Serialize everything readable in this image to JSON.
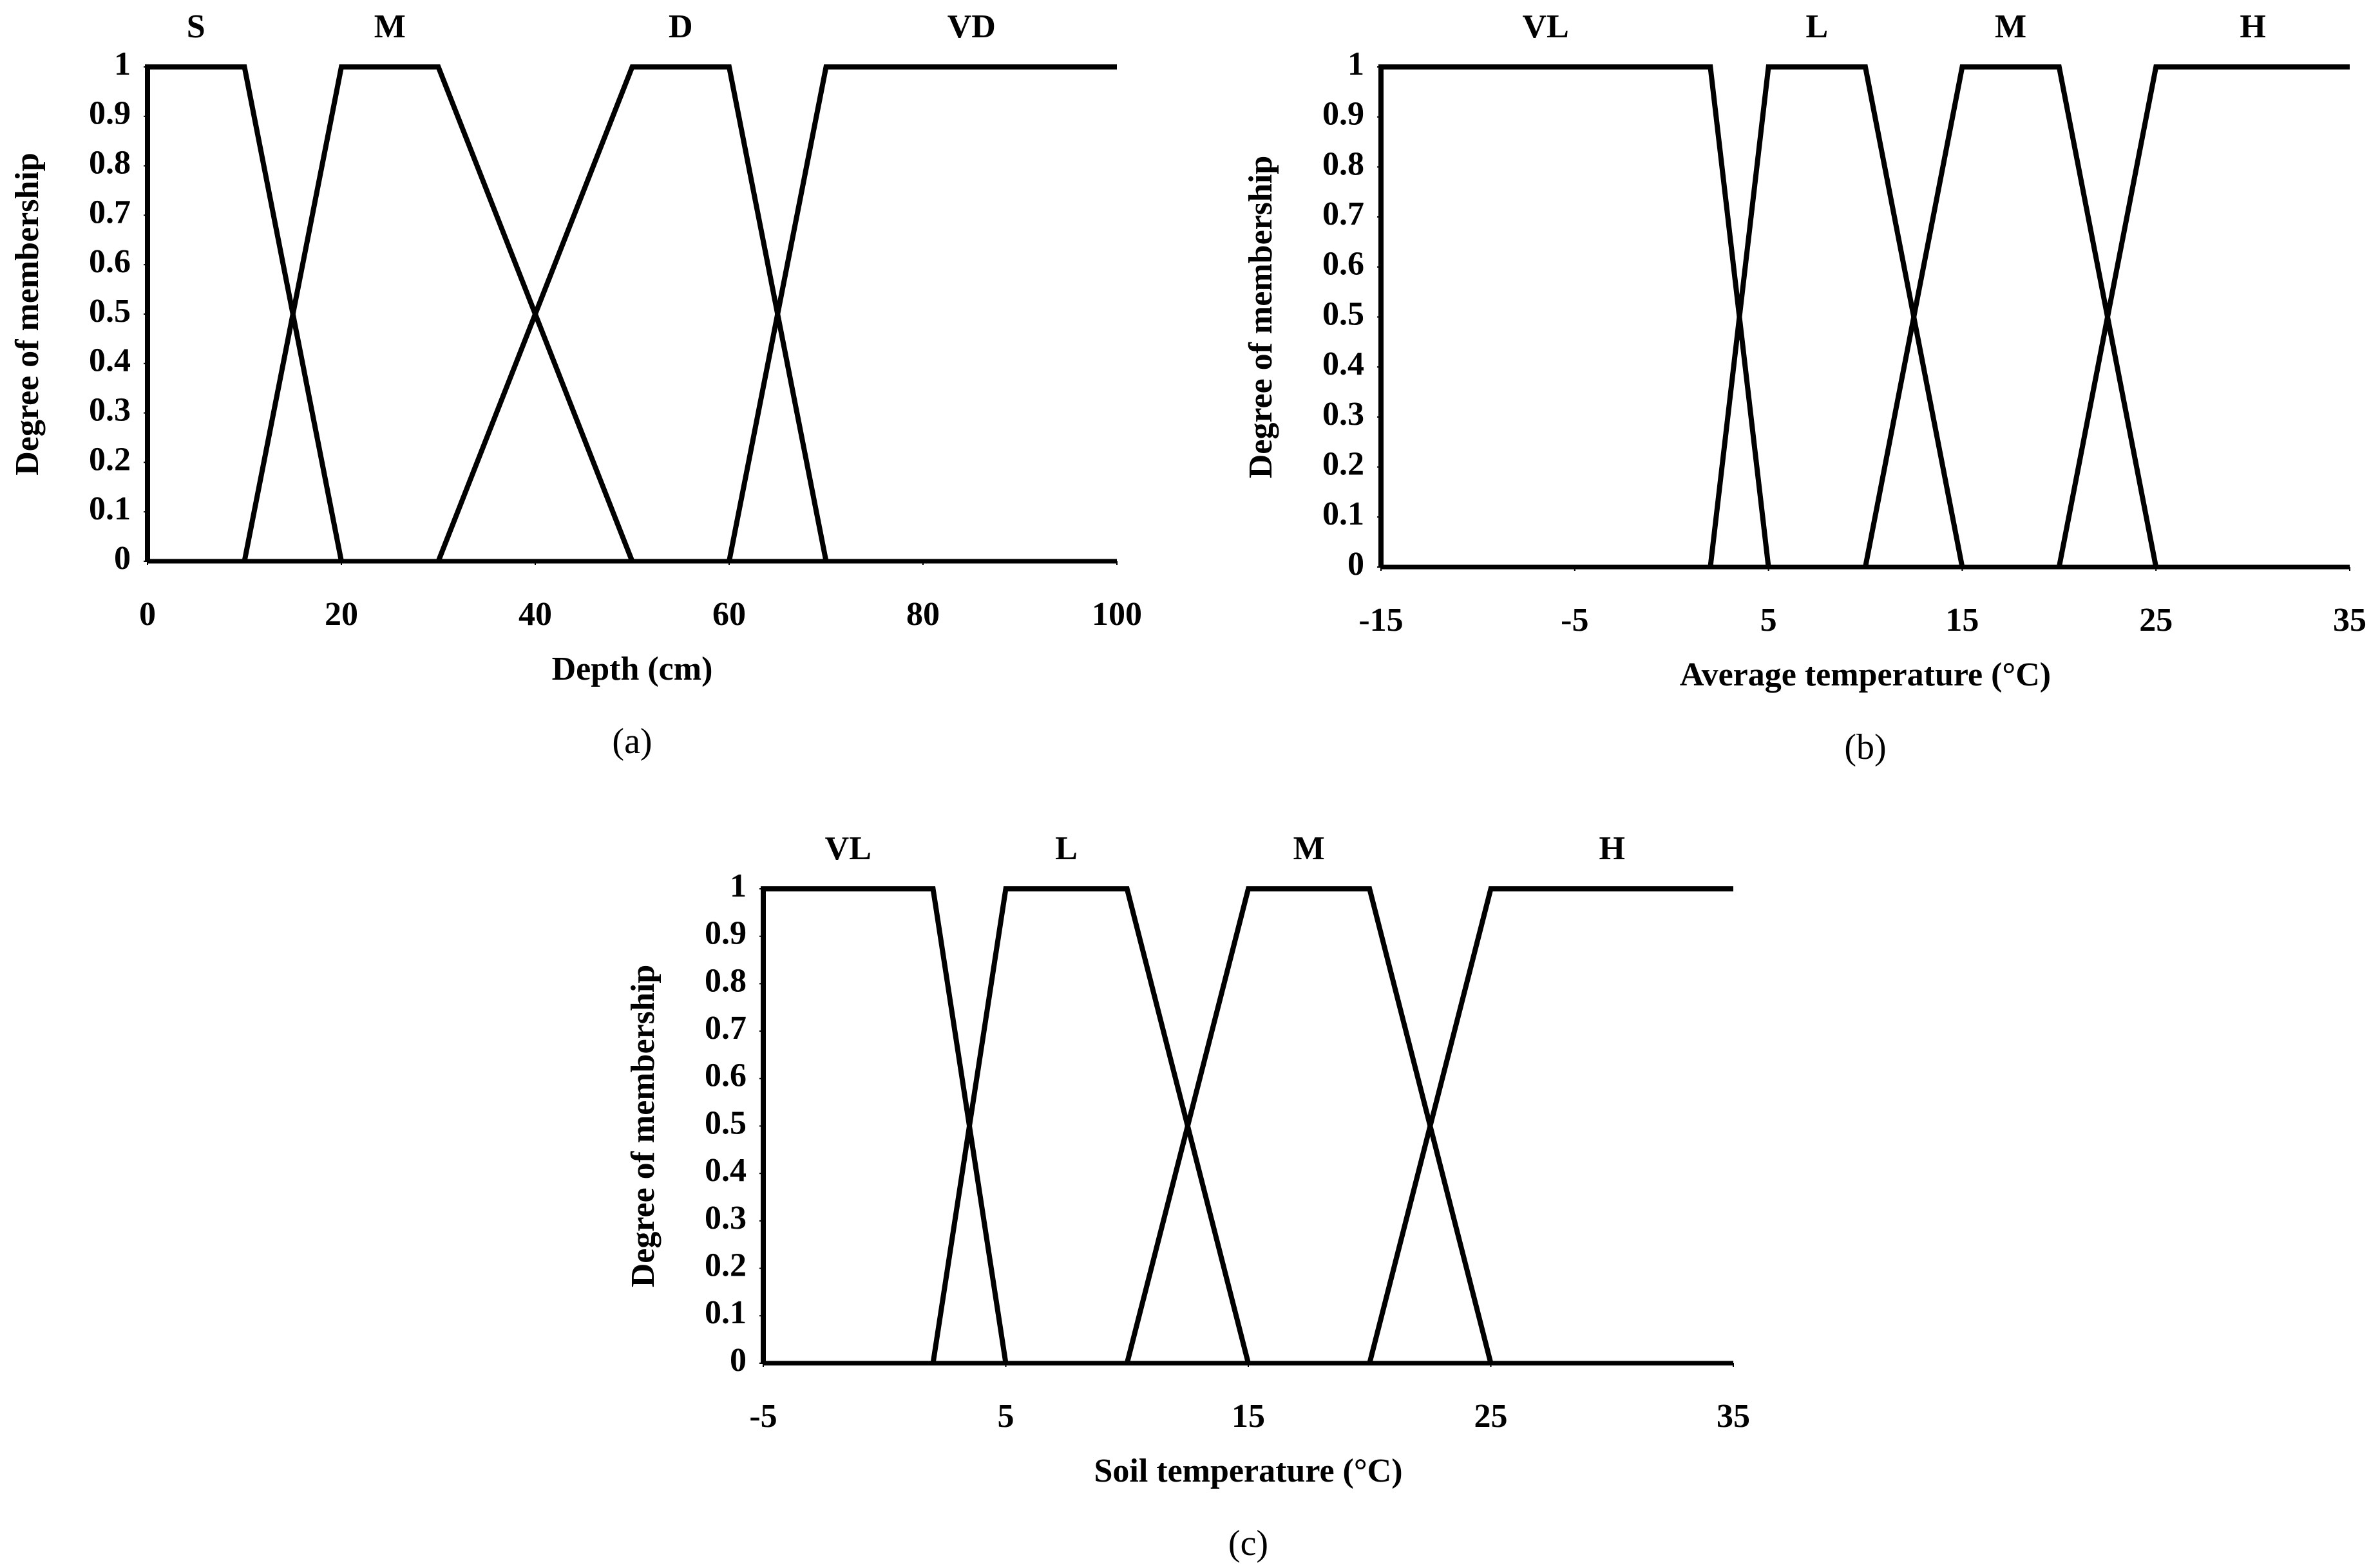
{
  "chart_data": [
    {
      "type": "line",
      "label": "(a)",
      "x_label": "Depth (cm)",
      "y_label": "Degree of membership",
      "xlim": [
        0,
        100
      ],
      "xticks": [
        0,
        20,
        40,
        60,
        80,
        100
      ],
      "ylim": [
        0,
        1
      ],
      "yticks": [
        0,
        0.1,
        0.2,
        0.3,
        0.4,
        0.5,
        0.6,
        0.7,
        0.8,
        0.9,
        1
      ],
      "series": [
        {
          "name": "S",
          "color": "#000000",
          "x": [
            0,
            0,
            10,
            20
          ],
          "values": [
            0,
            1,
            1,
            0
          ]
        },
        {
          "name": "M",
          "color": "#000000",
          "x": [
            10,
            20,
            30,
            50
          ],
          "values": [
            0,
            1,
            1,
            0
          ]
        },
        {
          "name": "D",
          "color": "#000000",
          "x": [
            30,
            50,
            60,
            70
          ],
          "values": [
            0,
            1,
            1,
            0
          ]
        },
        {
          "name": "VD",
          "color": "#000000",
          "x": [
            60,
            70,
            100
          ],
          "values": [
            0,
            1,
            1
          ]
        }
      ]
    },
    {
      "type": "line",
      "label": "(b)",
      "x_label": "Average temperature (°C)",
      "y_label": "Degree of membership",
      "xlim": [
        -15,
        35
      ],
      "xticks": [
        -15,
        -5,
        5,
        15,
        25,
        35
      ],
      "ylim": [
        0,
        1
      ],
      "yticks": [
        0,
        0.1,
        0.2,
        0.3,
        0.4,
        0.5,
        0.6,
        0.7,
        0.8,
        0.9,
        1
      ],
      "series": [
        {
          "name": "VL",
          "color": "#000000",
          "x": [
            -15,
            -15,
            2,
            5
          ],
          "values": [
            0,
            1,
            1,
            0
          ]
        },
        {
          "name": "L",
          "color": "#000000",
          "x": [
            2,
            5,
            10,
            15
          ],
          "values": [
            0,
            1,
            1,
            0
          ]
        },
        {
          "name": "M",
          "color": "#000000",
          "x": [
            10,
            15,
            20,
            25
          ],
          "values": [
            0,
            1,
            1,
            0
          ]
        },
        {
          "name": "H",
          "color": "#000000",
          "x": [
            20,
            25,
            35
          ],
          "values": [
            0,
            1,
            1
          ]
        }
      ]
    },
    {
      "type": "line",
      "label": "(c)",
      "x_label": "Soil temperature (°C)",
      "y_label": "Degree of membership",
      "xlim": [
        -5,
        35
      ],
      "xticks": [
        -5,
        5,
        15,
        25,
        35
      ],
      "ylim": [
        0,
        1
      ],
      "yticks": [
        0,
        0.1,
        0.2,
        0.3,
        0.4,
        0.5,
        0.6,
        0.7,
        0.8,
        0.9,
        1
      ],
      "series": [
        {
          "name": "VL",
          "color": "#000000",
          "x": [
            -5,
            -5,
            2,
            5
          ],
          "values": [
            0,
            1,
            1,
            0
          ]
        },
        {
          "name": "L",
          "color": "#000000",
          "x": [
            2,
            5,
            10,
            15
          ],
          "values": [
            0,
            1,
            1,
            0
          ]
        },
        {
          "name": "M",
          "color": "#000000",
          "x": [
            10,
            15,
            20,
            25
          ],
          "values": [
            0,
            1,
            1,
            0
          ]
        },
        {
          "name": "H",
          "color": "#000000",
          "x": [
            20,
            25,
            35
          ],
          "values": [
            0,
            1,
            1
          ]
        }
      ]
    }
  ]
}
